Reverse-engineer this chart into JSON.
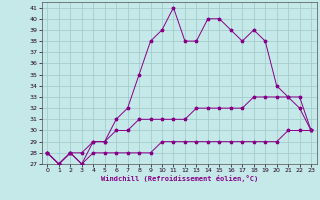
{
  "xlabel": "Windchill (Refroidissement éolien,°C)",
  "xlim": [
    -0.5,
    23.5
  ],
  "ylim": [
    27,
    41.5
  ],
  "yticks": [
    27,
    28,
    29,
    30,
    31,
    32,
    33,
    34,
    35,
    36,
    37,
    38,
    39,
    40,
    41
  ],
  "xticks": [
    0,
    1,
    2,
    3,
    4,
    5,
    6,
    7,
    8,
    9,
    10,
    11,
    12,
    13,
    14,
    15,
    16,
    17,
    18,
    19,
    20,
    21,
    22,
    23
  ],
  "bg_color": "#c5e8e8",
  "line_color": "#880088",
  "grid_color": "#9ec8c8",
  "line1": [
    28,
    27,
    28,
    27,
    29,
    29,
    31,
    32,
    35,
    38,
    39,
    41,
    38,
    38,
    40,
    40,
    39,
    38,
    39,
    38,
    34,
    33,
    32,
    30
  ],
  "line2": [
    28,
    27,
    28,
    28,
    29,
    29,
    30,
    30,
    31,
    31,
    31,
    31,
    31,
    32,
    32,
    32,
    32,
    32,
    33,
    33,
    33,
    33,
    33,
    30
  ],
  "line3": [
    28,
    27,
    28,
    27,
    28,
    28,
    28,
    28,
    28,
    28,
    29,
    29,
    29,
    29,
    29,
    29,
    29,
    29,
    29,
    29,
    29,
    30,
    30,
    30
  ]
}
